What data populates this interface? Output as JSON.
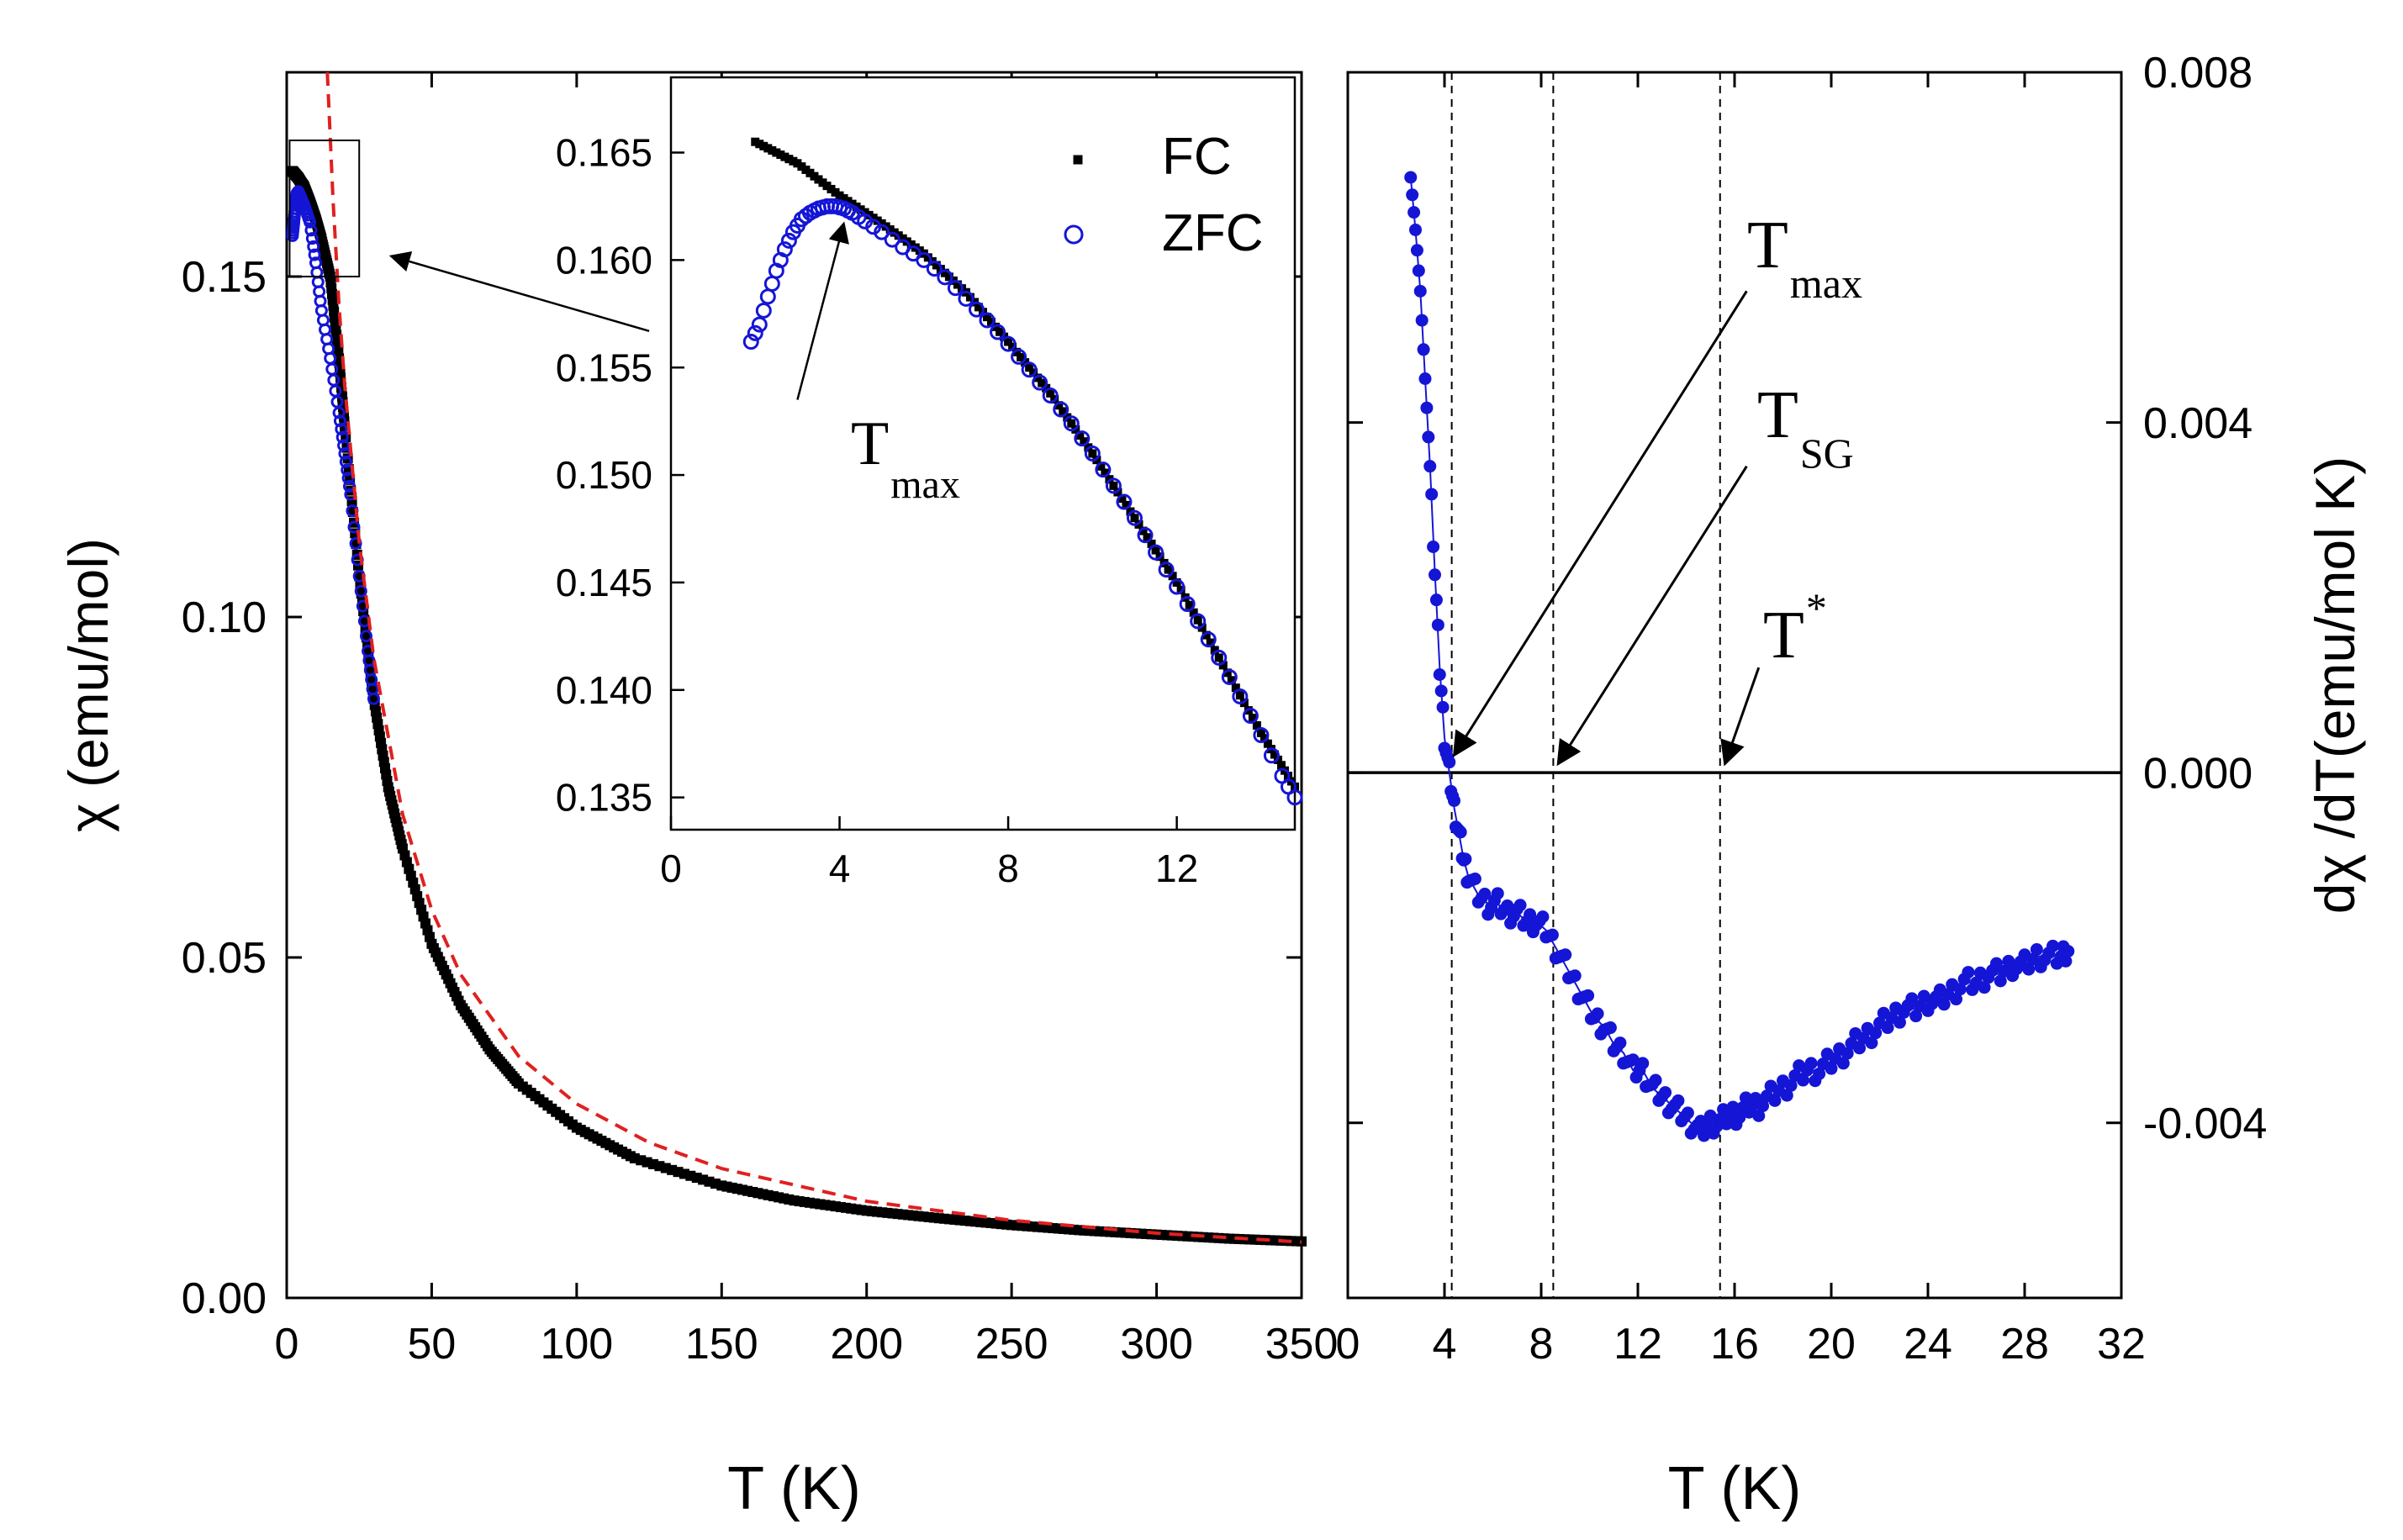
{
  "chart_data": [
    {
      "id": "left-main",
      "type": "scatter",
      "xlabel": "T (K)",
      "ylabel": "χ (emu/mol)",
      "xlim": [
        0,
        350
      ],
      "ylim": [
        0,
        0.18
      ],
      "xticks": [
        0,
        50,
        100,
        150,
        200,
        250,
        300,
        350
      ],
      "xtick_labels": [
        "0",
        "50",
        "100",
        "150",
        "200",
        "250",
        "300",
        "350"
      ],
      "yticks": [
        0,
        0.05,
        0.1,
        0.15
      ],
      "ytick_labels": [
        "0.00",
        "0.05",
        "0.10",
        "0.15"
      ],
      "series": [
        {
          "name": "FC",
          "marker": "filled-square",
          "color": "#000000",
          "x": [
            2,
            3,
            4,
            5,
            6,
            8,
            10,
            12,
            15,
            18,
            20,
            25,
            30,
            35,
            40,
            50,
            60,
            70,
            80,
            100,
            120,
            150,
            175,
            200,
            225,
            250,
            275,
            300,
            325,
            350
          ],
          "y": [
            0.1655,
            0.165,
            0.1645,
            0.1638,
            0.1632,
            0.161,
            0.1585,
            0.1555,
            0.15,
            0.138,
            0.128,
            0.106,
            0.088,
            0.075,
            0.066,
            0.052,
            0.043,
            0.0365,
            0.0315,
            0.025,
            0.0205,
            0.0165,
            0.0143,
            0.0128,
            0.0117,
            0.0107,
            0.0099,
            0.0093,
            0.0087,
            0.0083
          ]
        },
        {
          "name": "ZFC",
          "marker": "open-circle",
          "color": "#1515d6",
          "x": [
            2,
            2.5,
            3,
            3.5,
            4,
            5,
            6,
            8,
            10,
            12,
            15,
            18,
            20,
            22,
            25,
            28,
            30
          ],
          "y": [
            0.156,
            0.158,
            0.1605,
            0.1622,
            0.1625,
            0.1615,
            0.1605,
            0.158,
            0.152,
            0.145,
            0.138,
            0.13,
            0.124,
            0.118,
            0.106,
            0.095,
            0.088
          ]
        },
        {
          "name": "fit",
          "style": "dashed",
          "color": "#e02020",
          "x": [
            14,
            16,
            18,
            20,
            25,
            30,
            40,
            50,
            60,
            80,
            100,
            125,
            150,
            200,
            250,
            300,
            350
          ],
          "y": [
            0.18,
            0.161,
            0.146,
            0.134,
            0.111,
            0.094,
            0.071,
            0.057,
            0.0475,
            0.0355,
            0.0285,
            0.0228,
            0.019,
            0.0142,
            0.0114,
            0.0095,
            0.0082
          ]
        }
      ],
      "annotations": [
        {
          "kind": "box",
          "x": [
            1,
            25
          ],
          "y": [
            0.15,
            0.17
          ]
        },
        {
          "kind": "arrow",
          "from": [
            125,
            0.142
          ],
          "to": [
            36,
            0.153
          ]
        }
      ]
    },
    {
      "id": "left-inset",
      "type": "scatter",
      "xlim": [
        0,
        14.8
      ],
      "ylim": [
        0.1335,
        0.1685
      ],
      "xticks": [
        0,
        4,
        8,
        12
      ],
      "xtick_labels": [
        "0",
        "4",
        "8",
        "12"
      ],
      "yticks": [
        0.135,
        0.14,
        0.145,
        0.15,
        0.155,
        0.16,
        0.165
      ],
      "ytick_labels": [
        "0.135",
        "0.140",
        "0.145",
        "0.150",
        "0.155",
        "0.160",
        "0.165"
      ],
      "legend": [
        {
          "label": "FC",
          "marker": "filled-square",
          "color": "#000000"
        },
        {
          "label": "ZFC",
          "marker": "open-circle",
          "color": "#1515d6"
        }
      ],
      "series": [
        {
          "name": "FC",
          "marker": "filled-square",
          "color": "#000000",
          "x": [
            2,
            3,
            4,
            5,
            6,
            7,
            8,
            9,
            10,
            11,
            12,
            13,
            14,
            14.8
          ],
          "y": [
            0.1655,
            0.1645,
            0.163,
            0.1617,
            0.1603,
            0.1585,
            0.1562,
            0.1538,
            0.151,
            0.148,
            0.145,
            0.1415,
            0.138,
            0.1355
          ]
        },
        {
          "name": "ZFC",
          "marker": "open-circle",
          "color": "#1515d6",
          "x": [
            1.9,
            2.1,
            2.3,
            2.5,
            2.7,
            2.9,
            3.1,
            3.3,
            3.5,
            3.7,
            3.9,
            4.1,
            4.3,
            4.6,
            5.0,
            5.5,
            6.0,
            6.5,
            7.0,
            7.5,
            8.0,
            8.5,
            9.0,
            9.5,
            10.0,
            10.5,
            11.0,
            11.5,
            12.0,
            12.5,
            13.0,
            13.5,
            14.0,
            14.5,
            14.8
          ],
          "y": [
            0.1562,
            0.157,
            0.1583,
            0.1595,
            0.1605,
            0.1613,
            0.1619,
            0.1622,
            0.1624,
            0.1625,
            0.1625,
            0.1624,
            0.1622,
            0.1618,
            0.1613,
            0.1606,
            0.16,
            0.1592,
            0.1582,
            0.1572,
            0.1561,
            0.1549,
            0.1537,
            0.1524,
            0.151,
            0.1495,
            0.148,
            0.1464,
            0.1448,
            0.1432,
            0.1415,
            0.1397,
            0.1379,
            0.136,
            0.135
          ]
        }
      ],
      "annotations": [
        {
          "kind": "arrow",
          "label": "T",
          "sub": "max",
          "from": [
            3.0,
            0.1535
          ],
          "to": [
            4.1,
            0.1617
          ]
        }
      ]
    },
    {
      "id": "right",
      "type": "scatter",
      "xlabel": "T (K)",
      "ylabel": "dχ /dT(emu/mol K)",
      "xlim": [
        0,
        32
      ],
      "ylim": [
        -0.006,
        0.008
      ],
      "xticks": [
        0,
        4,
        8,
        12,
        16,
        20,
        24,
        28,
        32
      ],
      "xtick_labels": [
        "0",
        "4",
        "8",
        "12",
        "16",
        "20",
        "24",
        "28",
        "32"
      ],
      "yticks": [
        -0.004,
        0.0,
        0.004,
        0.008
      ],
      "ytick_labels": [
        "-0.004",
        "0.000",
        "0.004",
        "0.008"
      ],
      "zero_line": 0,
      "vlines": [
        4.3,
        8.5,
        15.4
      ],
      "series": [
        {
          "name": "dχ/dT",
          "marker": "filled-circle",
          "color": "#1515d6",
          "x": [
            2.6,
            2.8,
            3.0,
            3.2,
            3.4,
            3.6,
            3.8,
            4.0,
            4.2,
            4.4,
            4.6,
            4.8,
            5.0,
            5.4,
            5.8,
            6.2,
            6.6,
            7.0,
            7.4,
            7.8,
            8.2,
            8.6,
            9.0,
            9.4,
            9.8,
            10.2,
            10.6,
            11.0,
            11.4,
            11.8,
            12.2,
            12.6,
            13.0,
            13.4,
            13.8,
            14.2,
            14.6,
            15.0,
            15.4,
            15.8,
            16.2,
            16.6,
            17.0,
            17.5,
            18.0,
            18.5,
            19.0,
            19.5,
            20.0,
            20.5,
            21.0,
            21.5,
            22.0,
            22.5,
            23.0,
            23.5,
            24.0,
            24.5,
            25.0,
            25.5,
            26.0,
            26.5,
            27.0,
            27.5,
            28.0,
            28.5,
            29.0,
            29.5,
            29.8
          ],
          "y": [
            0.0068,
            0.0062,
            0.0055,
            0.0045,
            0.0035,
            0.0023,
            0.0012,
            0.0004,
            0.0,
            -0.0004,
            -0.0007,
            -0.001,
            -0.0012,
            -0.0014,
            -0.0015,
            -0.0015,
            -0.0016,
            -0.0016,
            -0.0017,
            -0.0017,
            -0.0018,
            -0.002,
            -0.0022,
            -0.0024,
            -0.0026,
            -0.0028,
            -0.0029,
            -0.0031,
            -0.0032,
            -0.0034,
            -0.0034,
            -0.0036,
            -0.0037,
            -0.0038,
            -0.0039,
            -0.004,
            -0.0041,
            -0.004,
            -0.004,
            -0.0039,
            -0.0039,
            -0.0038,
            -0.0038,
            -0.0037,
            -0.0036,
            -0.0035,
            -0.0034,
            -0.0034,
            -0.0033,
            -0.0032,
            -0.0031,
            -0.003,
            -0.0029,
            -0.0028,
            -0.0027,
            -0.0027,
            -0.0026,
            -0.0026,
            -0.0025,
            -0.0024,
            -0.0024,
            -0.0023,
            -0.0023,
            -0.0022,
            -0.0022,
            -0.0021,
            -0.0021,
            -0.0021,
            -0.002
          ]
        }
      ],
      "annotations": [
        {
          "kind": "arrow",
          "label": "T",
          "sub": "max",
          "from": [
            16.5,
            0.0055
          ],
          "to": [
            4.4,
            0.0002
          ]
        },
        {
          "kind": "arrow",
          "label": "T",
          "sub": "SG",
          "from": [
            16.5,
            0.0035
          ],
          "to": [
            8.7,
            0.0001
          ]
        },
        {
          "kind": "arrow",
          "label": "T",
          "sup": "*",
          "from": [
            17.0,
            0.0012
          ],
          "to": [
            15.6,
            0.0001
          ]
        }
      ]
    }
  ]
}
